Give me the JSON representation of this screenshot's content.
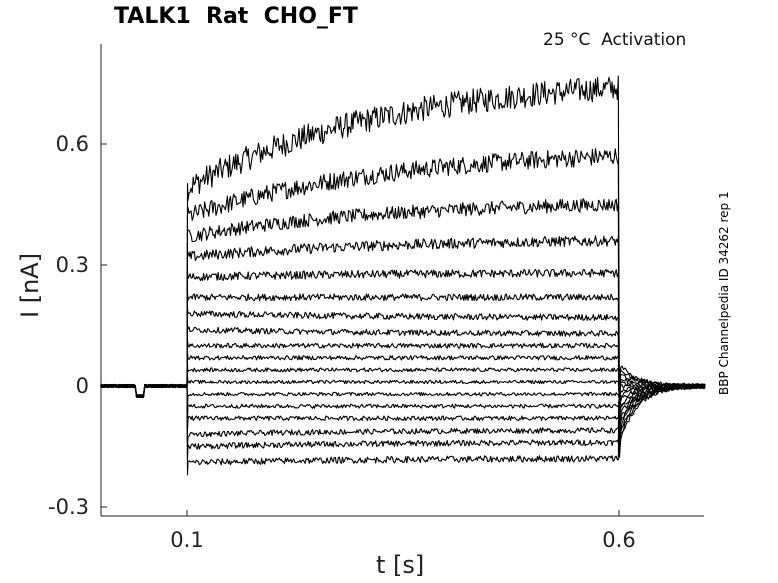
{
  "title": "TALK1  Rat  CHO_FT",
  "annotation": "25 °C  Activation",
  "side_note": "BBP Channelpedia ID 34262 rep 1",
  "chart_data": {
    "type": "line",
    "title": "TALK1  Rat  CHO_FT",
    "xlabel": "t [s]",
    "ylabel": "I [nA]",
    "xlim": [
      0.0,
      0.7
    ],
    "ylim": [
      -0.3,
      0.83
    ],
    "x_ticks": [
      0.1,
      0.6
    ],
    "x_tick_labels": [
      "0.1",
      "0.6"
    ],
    "y_ticks": [
      -0.3,
      0,
      0.3,
      0.6
    ],
    "y_tick_labels": [
      "-0.3",
      "0",
      "0.3",
      "0.6"
    ],
    "grid": false,
    "legend": "none",
    "step_start": 0.1,
    "step_end": 0.6,
    "pre_dip": {
      "t_start": 0.04,
      "t_end": 0.05,
      "i": -0.025
    },
    "series": [
      {
        "i_start": 0.49,
        "i_end": 0.74
      },
      {
        "i_start": 0.42,
        "i_end": 0.57
      },
      {
        "i_start": 0.37,
        "i_end": 0.45
      },
      {
        "i_start": 0.32,
        "i_end": 0.36
      },
      {
        "i_start": 0.27,
        "i_end": 0.28
      },
      {
        "i_start": 0.22,
        "i_end": 0.22
      },
      {
        "i_start": 0.18,
        "i_end": 0.17
      },
      {
        "i_start": 0.14,
        "i_end": 0.13
      },
      {
        "i_start": 0.1,
        "i_end": 0.1
      },
      {
        "i_start": 0.07,
        "i_end": 0.07
      },
      {
        "i_start": 0.04,
        "i_end": 0.04
      },
      {
        "i_start": 0.01,
        "i_end": 0.01
      },
      {
        "i_start": -0.02,
        "i_end": -0.02
      },
      {
        "i_start": -0.05,
        "i_end": -0.05
      },
      {
        "i_start": -0.08,
        "i_end": -0.08
      },
      {
        "i_start": -0.12,
        "i_end": -0.11
      },
      {
        "i_start": -0.15,
        "i_end": -0.14
      },
      {
        "i_start": -0.19,
        "i_end": -0.18
      }
    ]
  }
}
